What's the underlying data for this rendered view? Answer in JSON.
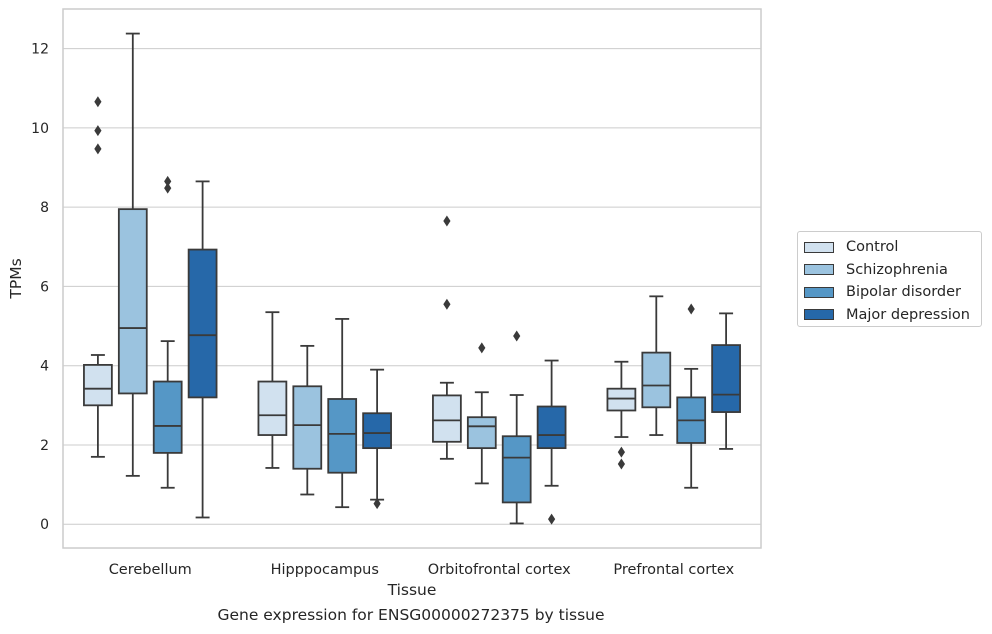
{
  "chart_data": {
    "type": "box",
    "xlabel": "Tissue",
    "ylabel": "TPMs",
    "ylim": [
      -0.6,
      13
    ],
    "yticks": [
      0,
      2,
      4,
      6,
      8,
      10,
      12
    ],
    "grid": "horizontal",
    "legend_position": "right",
    "categories": [
      "Cerebellum",
      "Hipppocampus",
      "Orbitofrontal cortex",
      "Prefrontal cortex"
    ],
    "series": [
      {
        "name": "Control",
        "color": "#d1e1ef",
        "boxes": [
          {
            "whislo": 1.7,
            "q1": 3.0,
            "med": 3.42,
            "q3": 4.02,
            "whishi": 4.27,
            "fliers": [
              9.47,
              9.93,
              10.66
            ]
          },
          {
            "whislo": 1.42,
            "q1": 2.25,
            "med": 2.75,
            "q3": 3.6,
            "whishi": 5.35,
            "fliers": []
          },
          {
            "whislo": 1.65,
            "q1": 2.08,
            "med": 2.62,
            "q3": 3.25,
            "whishi": 3.57,
            "fliers": [
              5.55,
              7.65
            ]
          },
          {
            "whislo": 2.2,
            "q1": 2.87,
            "med": 3.17,
            "q3": 3.42,
            "whishi": 4.1,
            "fliers": [
              1.52,
              1.82
            ]
          }
        ]
      },
      {
        "name": "Schizophrenia",
        "color": "#9bc3df",
        "boxes": [
          {
            "whislo": 1.22,
            "q1": 3.3,
            "med": 4.95,
            "q3": 7.95,
            "whishi": 12.38,
            "fliers": []
          },
          {
            "whislo": 0.75,
            "q1": 1.4,
            "med": 2.5,
            "q3": 3.48,
            "whishi": 4.5,
            "fliers": []
          },
          {
            "whislo": 1.03,
            "q1": 1.92,
            "med": 2.47,
            "q3": 2.7,
            "whishi": 3.33,
            "fliers": [
              4.45
            ]
          },
          {
            "whislo": 2.25,
            "q1": 2.95,
            "med": 3.5,
            "q3": 4.33,
            "whishi": 5.75,
            "fliers": []
          }
        ]
      },
      {
        "name": "Bipolar disorder",
        "color": "#5597c6",
        "boxes": [
          {
            "whislo": 0.92,
            "q1": 1.8,
            "med": 2.48,
            "q3": 3.6,
            "whishi": 4.62,
            "fliers": [
              8.48,
              8.65
            ]
          },
          {
            "whislo": 0.43,
            "q1": 1.3,
            "med": 2.28,
            "q3": 3.16,
            "whishi": 5.18,
            "fliers": []
          },
          {
            "whislo": 0.02,
            "q1": 0.55,
            "med": 1.68,
            "q3": 2.22,
            "whishi": 3.26,
            "fliers": [
              4.75
            ]
          },
          {
            "whislo": 0.92,
            "q1": 2.05,
            "med": 2.62,
            "q3": 3.2,
            "whishi": 3.92,
            "fliers": [
              5.43
            ]
          }
        ]
      },
      {
        "name": "Major depression",
        "color": "#2668a9",
        "boxes": [
          {
            "whislo": 0.17,
            "q1": 3.2,
            "med": 4.77,
            "q3": 6.93,
            "whishi": 8.65,
            "fliers": []
          },
          {
            "whislo": 0.62,
            "q1": 1.92,
            "med": 2.3,
            "q3": 2.8,
            "whishi": 3.9,
            "fliers": [
              0.52
            ]
          },
          {
            "whislo": 0.97,
            "q1": 1.92,
            "med": 2.25,
            "q3": 2.97,
            "whishi": 4.13,
            "fliers": [
              0.13
            ]
          },
          {
            "whislo": 1.9,
            "q1": 2.83,
            "med": 3.27,
            "q3": 4.52,
            "whishi": 5.32,
            "fliers": []
          }
        ]
      }
    ]
  },
  "caption": "Gene expression for ENSG00000272375 by tissue"
}
